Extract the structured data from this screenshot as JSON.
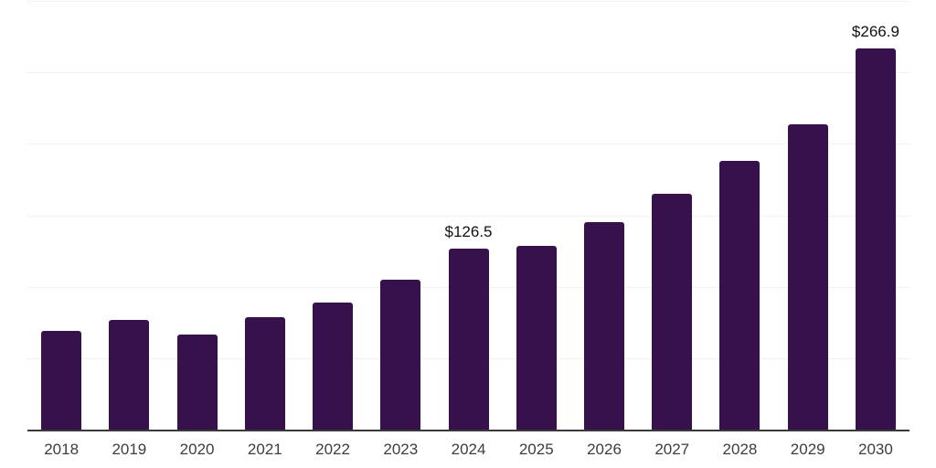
{
  "chart_data": {
    "type": "bar",
    "title": "",
    "xlabel": "",
    "ylabel": "",
    "categories": [
      "2018",
      "2019",
      "2020",
      "2021",
      "2022",
      "2023",
      "2024",
      "2025",
      "2026",
      "2027",
      "2028",
      "2029",
      "2030"
    ],
    "values": [
      68.9,
      76.6,
      66.4,
      78.5,
      88.7,
      104.7,
      126.5,
      128.9,
      145.5,
      165.3,
      188.3,
      213.8,
      266.9
    ],
    "data_labels": [
      {
        "index": 6,
        "text": "$126.5"
      },
      {
        "index": 12,
        "text": "$266.9"
      }
    ],
    "ylim": [
      0,
      300
    ],
    "gridline_step": 50,
    "grid": true,
    "legend": false,
    "style": {
      "background": "#ffffff",
      "bar_color": "#36114B",
      "axis_line_color": "#3a3a3a",
      "gridline_color": "#f1f1f1",
      "tick_label_color": "#3d3d3d",
      "value_label_color": "#111111"
    }
  }
}
